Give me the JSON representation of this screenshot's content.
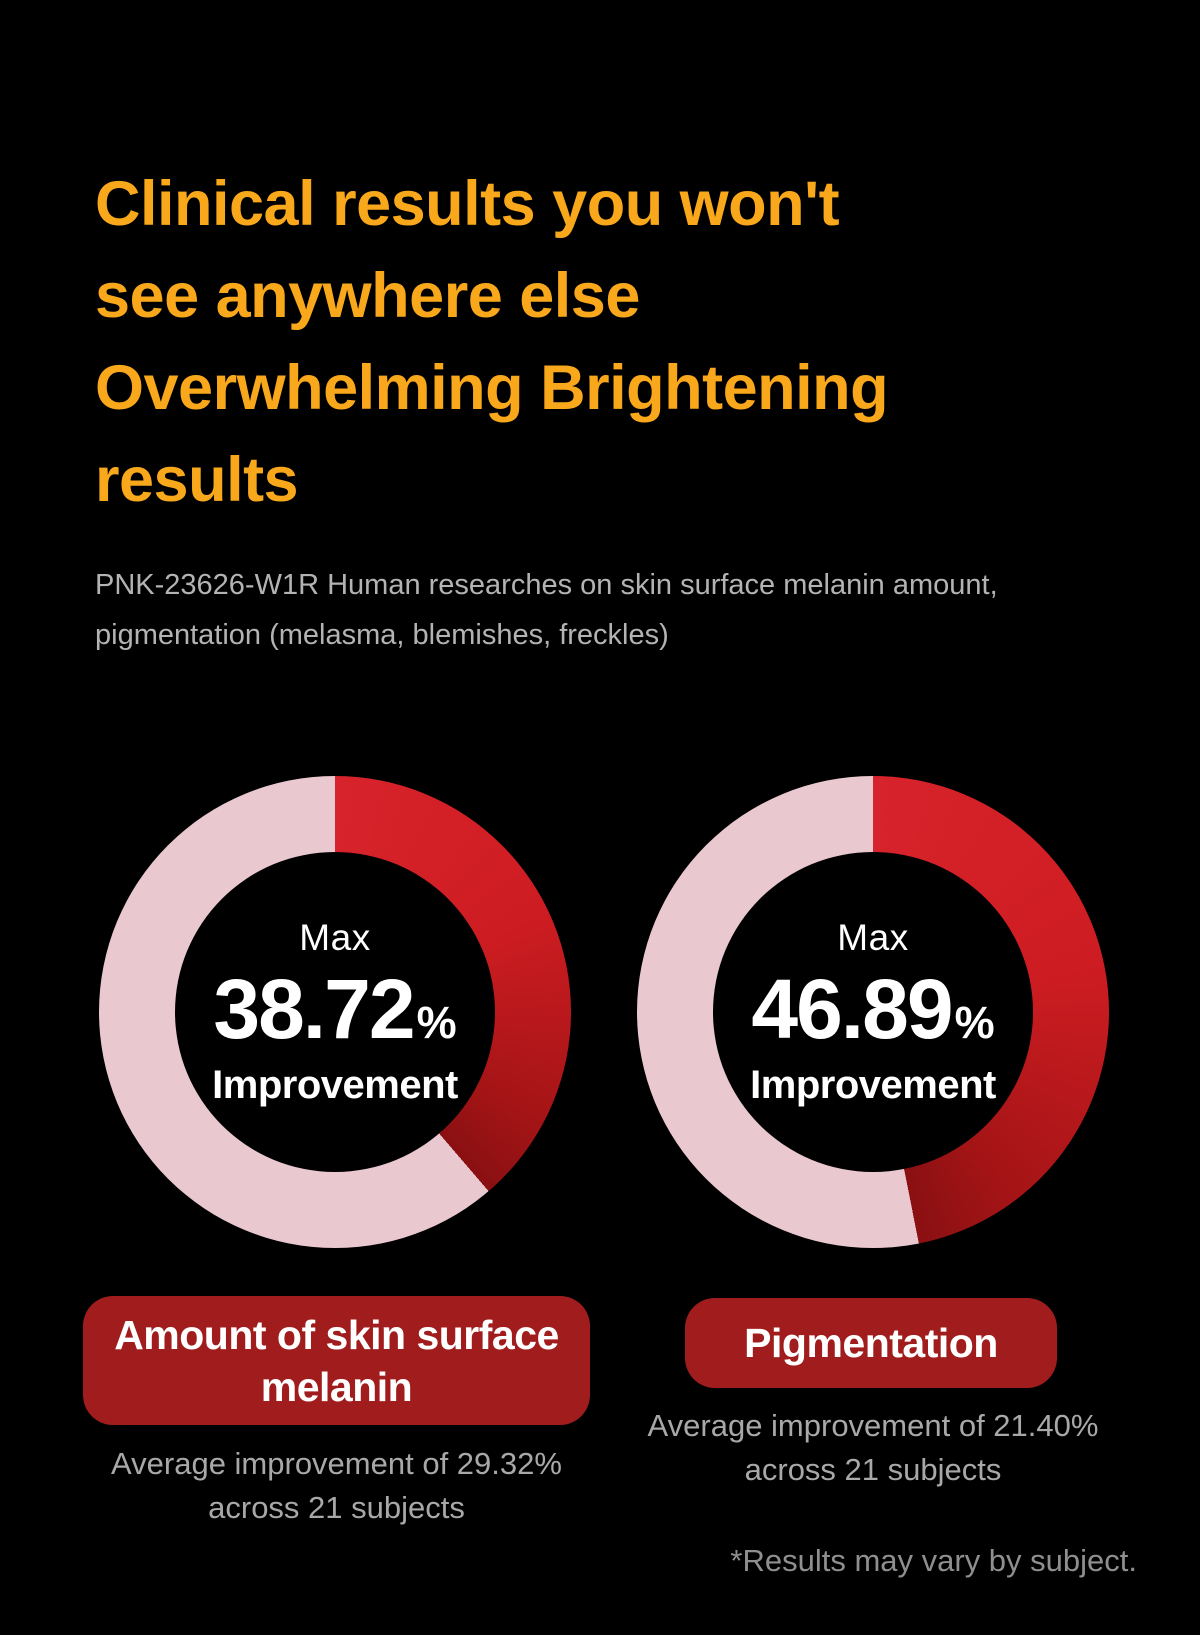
{
  "page": {
    "background": "#000000",
    "disclaimer": "*Results may vary by subject."
  },
  "header": {
    "title": "Clinical results you won't\nsee anywhere else\nOverwhelming Brightening\nresults",
    "title_color": "#f9a81b",
    "subtitle": "PNK-23626-W1R Human researches on skin surface melanin amount,\npigmentation (melasma, blemishes, freckles)",
    "subtitle_color": "#b3b3b3"
  },
  "chart_data": [
    {
      "type": "pie",
      "variant": "donut",
      "title": "Amount of skin surface melanin",
      "center_label_top": "Max",
      "value": 38.72,
      "value_display": "38.72",
      "unit": "%",
      "center_label_bottom": "Improvement",
      "avg_value": 29.32,
      "subjects": 21,
      "avg_text": "Average improvement of 29.32%\nacross 21 subjects",
      "legend": "red arc = max improvement share of ring, pink = remainder",
      "colors": {
        "arc_start": "#d7232b",
        "arc_mid": "#ce1d22",
        "arc_dark": "#a41416",
        "arc_end": "#8a1012",
        "remainder": "#eac8d0",
        "badge": "#a11d1d"
      }
    },
    {
      "type": "pie",
      "variant": "donut",
      "title": "Pigmentation",
      "center_label_top": "Max",
      "value": 46.89,
      "value_display": "46.89",
      "unit": "%",
      "center_label_bottom": "Improvement",
      "avg_value": 21.4,
      "subjects": 21,
      "avg_text": "Average improvement of 21.40%\nacross 21 subjects",
      "legend": "red arc = max improvement share of ring, pink = remainder",
      "colors": {
        "arc_start": "#d7232b",
        "arc_mid": "#ce1d22",
        "arc_dark": "#a41416",
        "arc_end": "#8a1012",
        "remainder": "#eac8d0",
        "badge": "#a11d1d"
      }
    }
  ]
}
